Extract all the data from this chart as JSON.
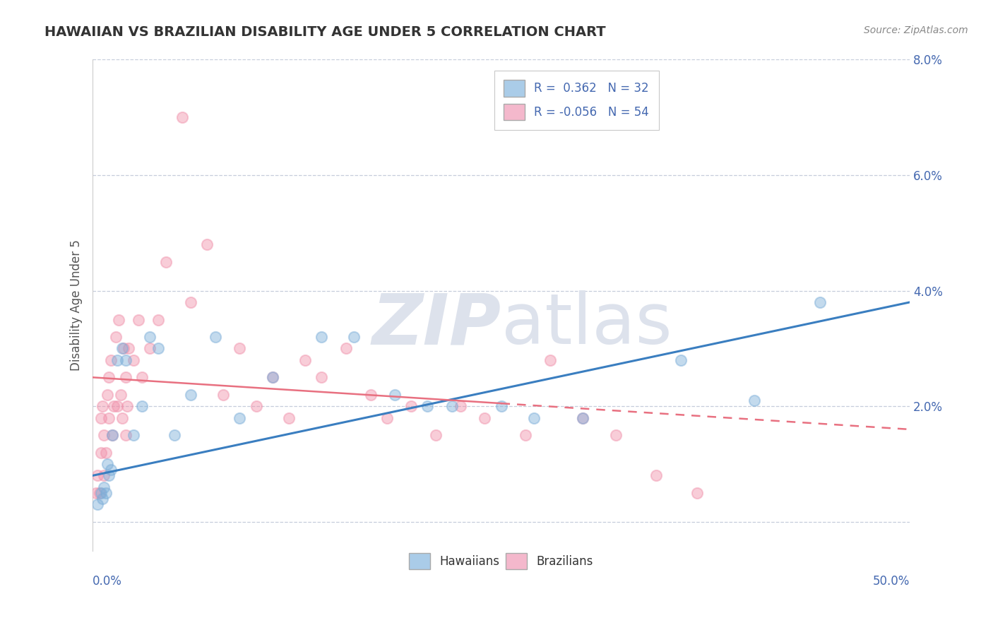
{
  "title": "HAWAIIAN VS BRAZILIAN DISABILITY AGE UNDER 5 CORRELATION CHART",
  "source": "Source: ZipAtlas.com",
  "ylabel": "Disability Age Under 5",
  "x_min": 0.0,
  "x_max": 50.0,
  "y_min": -0.5,
  "y_max": 8.0,
  "ytick_vals": [
    0,
    2,
    4,
    6,
    8
  ],
  "hawaiians_R": 0.362,
  "hawaiians_N": 32,
  "brazilians_R": -0.056,
  "brazilians_N": 54,
  "hawaiians_color": "#aacce8",
  "hawaiians_dot_color": "#7aadd8",
  "brazilians_color": "#f4b8cc",
  "brazilians_dot_color": "#f090aa",
  "trend_blue_color": "#3a7ec0",
  "trend_pink_color": "#e87080",
  "background_color": "#ffffff",
  "grid_color": "#c0c8d8",
  "watermark_color": "#dde2ec",
  "title_color": "#333333",
  "label_color": "#4468b0",
  "ylabel_color": "#555555",
  "hawaiians_x": [
    0.3,
    0.5,
    0.6,
    0.7,
    0.8,
    0.9,
    1.0,
    1.1,
    1.2,
    1.5,
    1.8,
    2.0,
    2.5,
    3.0,
    3.5,
    4.0,
    5.0,
    6.0,
    7.5,
    9.0,
    11.0,
    14.0,
    16.0,
    18.5,
    20.5,
    22.0,
    25.0,
    27.0,
    30.0,
    36.0,
    40.5,
    44.5
  ],
  "hawaiians_y": [
    0.3,
    0.5,
    0.4,
    0.6,
    0.5,
    1.0,
    0.8,
    0.9,
    1.5,
    2.8,
    3.0,
    2.8,
    1.5,
    2.0,
    3.2,
    3.0,
    1.5,
    2.2,
    3.2,
    1.8,
    2.5,
    3.2,
    3.2,
    2.2,
    2.0,
    2.0,
    2.0,
    1.8,
    1.8,
    2.8,
    2.1,
    3.8
  ],
  "brazilians_x": [
    0.2,
    0.3,
    0.4,
    0.5,
    0.5,
    0.6,
    0.7,
    0.7,
    0.8,
    0.9,
    1.0,
    1.0,
    1.1,
    1.2,
    1.3,
    1.4,
    1.5,
    1.6,
    1.7,
    1.8,
    1.9,
    2.0,
    2.0,
    2.1,
    2.2,
    2.5,
    2.8,
    3.0,
    3.5,
    4.0,
    4.5,
    5.5,
    6.0,
    7.0,
    8.0,
    9.0,
    10.0,
    11.0,
    12.0,
    13.0,
    14.0,
    15.5,
    17.0,
    18.0,
    19.5,
    21.0,
    22.5,
    24.0,
    26.5,
    28.0,
    30.0,
    32.0,
    34.5,
    37.0
  ],
  "brazilians_y": [
    0.5,
    0.8,
    0.5,
    1.2,
    1.8,
    2.0,
    0.8,
    1.5,
    1.2,
    2.2,
    2.5,
    1.8,
    2.8,
    1.5,
    2.0,
    3.2,
    2.0,
    3.5,
    2.2,
    1.8,
    3.0,
    2.5,
    1.5,
    2.0,
    3.0,
    2.8,
    3.5,
    2.5,
    3.0,
    3.5,
    4.5,
    7.0,
    3.8,
    4.8,
    2.2,
    3.0,
    2.0,
    2.5,
    1.8,
    2.8,
    2.5,
    3.0,
    2.2,
    1.8,
    2.0,
    1.5,
    2.0,
    1.8,
    1.5,
    2.8,
    1.8,
    1.5,
    0.8,
    0.5
  ],
  "trend_h_x0": 0.0,
  "trend_h_y0": 0.8,
  "trend_h_x1": 50.0,
  "trend_h_y1": 3.8,
  "trend_b_x0": 0.0,
  "trend_b_y0": 2.5,
  "trend_b_x1": 50.0,
  "trend_b_y1": 1.6,
  "trend_b_solid_end": 25.0
}
